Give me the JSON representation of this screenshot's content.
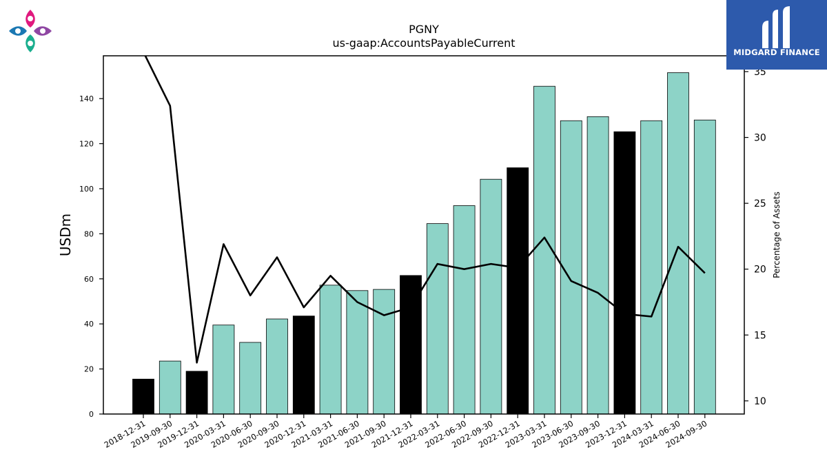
{
  "chart_data": {
    "type": "bar",
    "title": "PGNY",
    "subtitle": "us-gaap:AccountsPayableCurrent",
    "ylabel": "USDm",
    "y2label": "Percentage of Assets",
    "ylim": [
      0,
      159
    ],
    "y2lim": [
      9,
      36.2
    ],
    "yticks": [
      0,
      20,
      40,
      60,
      80,
      100,
      120,
      140
    ],
    "y2ticks": [
      10,
      15,
      20,
      25,
      30,
      35
    ],
    "categories": [
      "2018-12-31",
      "2019-09-30",
      "2019-12-31",
      "2020-03-31",
      "2020-06-30",
      "2020-09-30",
      "2020-12-31",
      "2021-03-31",
      "2021-06-30",
      "2021-09-30",
      "2021-12-31",
      "2022-03-31",
      "2022-06-30",
      "2022-09-30",
      "2022-12-31",
      "2023-03-31",
      "2023-06-30",
      "2023-09-30",
      "2023-12-31",
      "2024-03-31",
      "2024-06-30",
      "2024-09-30"
    ],
    "series": [
      {
        "kind": "bar",
        "axis": "left",
        "values": [
          15.5,
          23.5,
          19.0,
          39.5,
          31.8,
          42.2,
          43.5,
          57.2,
          54.8,
          55.3,
          61.5,
          84.5,
          92.5,
          104.2,
          109.3,
          145.5,
          130.2,
          132.0,
          125.3,
          130.2,
          151.5,
          130.5
        ],
        "highlight": [
          true,
          false,
          true,
          false,
          false,
          false,
          true,
          false,
          false,
          false,
          true,
          false,
          false,
          false,
          true,
          false,
          false,
          false,
          true,
          false,
          false,
          false
        ]
      },
      {
        "kind": "line",
        "axis": "right",
        "values": [
          36.5,
          32.4,
          12.9,
          21.9,
          18.0,
          20.9,
          17.1,
          19.5,
          17.5,
          16.5,
          17.1,
          20.4,
          20.0,
          20.4,
          20.1,
          22.4,
          19.1,
          18.2,
          16.6,
          16.4,
          21.7,
          19.7
        ]
      }
    ],
    "colors": {
      "bar": "#8dd3c7",
      "highlight": "#000000",
      "line": "#000000"
    },
    "grid": false
  },
  "brand": {
    "name": "MIDGARD FINANCE"
  }
}
